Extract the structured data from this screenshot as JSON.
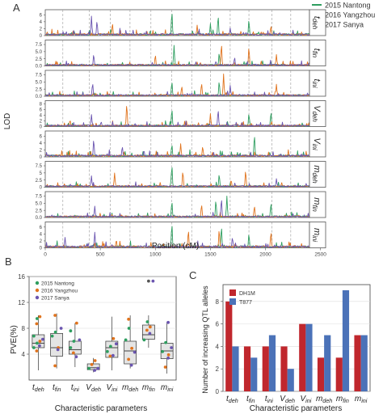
{
  "panels": {
    "a": "A",
    "b": "B",
    "c": "C"
  },
  "colors": {
    "nantong": "#2e9e5f",
    "yangzhou": "#e0731d",
    "sanya": "#6b55b0",
    "dh1m": "#c0272d",
    "t877": "#4b72b8"
  },
  "chart_data": [
    {
      "type": "line",
      "xlabel": "Position (cM)",
      "ylabel": "LOD",
      "xlim": [
        0,
        2400
      ],
      "xticks": [
        "0",
        "500",
        "1000",
        "1500",
        "2000",
        "2500"
      ],
      "legend": {
        "placement": "top-right",
        "entries": [
          "2015 Nantong",
          "2016 Yangzhou",
          "2017 Sanya"
        ]
      },
      "chromosome_boundaries_cM": [
        160,
        400,
        590,
        770,
        960,
        1150,
        1330,
        1500,
        1680,
        1850,
        2060,
        2230
      ],
      "tracks": [
        {
          "label": "tdeh",
          "yticks": [
            "0",
            "2",
            "4",
            "6"
          ],
          "ylim": [
            0,
            7
          ],
          "peaks": {
            "2015 Nantong": [
              [
                1150,
                6.8
              ],
              [
                1570,
                5.6
              ],
              [
                1850,
                4.5
              ],
              [
                1500,
                3.5
              ]
            ],
            "2016 Yangzhou": [
              [
                610,
                3.5
              ],
              [
                1380,
                3.0
              ],
              [
                2050,
                2.8
              ]
            ],
            "2017 Sanya": [
              [
                420,
                5.6
              ],
              [
                470,
                4.2
              ],
              [
                1680,
                2.2
              ]
            ]
          }
        },
        {
          "label": "tfin",
          "yticks": [
            "0.0",
            "2.5",
            "5.0",
            "7.5"
          ],
          "ylim": [
            0,
            8.5
          ],
          "peaks": {
            "2015 Nantong": [
              [
                1170,
                7.2
              ],
              [
                1580,
                4.5
              ]
            ],
            "2016 Yangzhou": [
              [
                1600,
                7.6
              ],
              [
                1850,
                6.5
              ],
              [
                1000,
                3.8
              ],
              [
                2100,
                4.0
              ]
            ],
            "2017 Sanya": [
              [
                440,
                4.0
              ],
              [
                1720,
                3.0
              ]
            ]
          }
        },
        {
          "label": "tini",
          "yticks": [
            "0.0",
            "2.5",
            "5.0",
            "7.5"
          ],
          "ylim": [
            0,
            8.5
          ],
          "peaks": {
            "2015 Nantong": [
              [
                1150,
                5.0
              ],
              [
                1580,
                5.2
              ]
            ],
            "2016 Yangzhou": [
              [
                1240,
                3.5
              ],
              [
                1420,
                4.5
              ],
              [
                1620,
                7.8
              ],
              [
                2100,
                4.2
              ]
            ],
            "2017 Sanya": [
              [
                430,
                4.5
              ],
              [
                1680,
                3.8
              ]
            ]
          }
        },
        {
          "label": "Vdeh",
          "yticks": [
            "0",
            "2",
            "4",
            "6",
            "8"
          ],
          "ylim": [
            0,
            8.5
          ],
          "peaks": {
            "2015 Nantong": [
              [
                1150,
                6.0
              ],
              [
                2050,
                5.0
              ],
              [
                1850,
                4.5
              ]
            ],
            "2016 Yangzhou": [
              [
                740,
                7.8
              ],
              [
                1500,
                4.5
              ]
            ],
            "2017 Sanya": [
              [
                420,
                4.2
              ],
              [
                1570,
                5.8
              ]
            ]
          }
        },
        {
          "label": "Vini",
          "yticks": [
            "0",
            "2",
            "4",
            "6"
          ],
          "ylim": [
            0,
            7
          ],
          "peaks": {
            "2015 Nantong": [
              [
                1900,
                6.2
              ],
              [
                1150,
                3.5
              ]
            ],
            "2016 Yangzhou": [
              [
                1230,
                3.8
              ],
              [
                1430,
                3.0
              ]
            ],
            "2017 Sanya": [
              [
                440,
                5.0
              ],
              [
                700,
                3.0
              ]
            ]
          }
        },
        {
          "label": "mdeh",
          "yticks": [
            "0",
            "2.5",
            "5",
            "7.5"
          ],
          "ylim": [
            0,
            8.5
          ],
          "peaks": {
            "2015 Nantong": [
              [
                1150,
                7.5
              ],
              [
                1580,
                4.5
              ]
            ],
            "2016 Yangzhou": [
              [
                630,
                5.0
              ],
              [
                1250,
                5.5
              ],
              [
                1820,
                5.8
              ]
            ],
            "2017 Sanya": [
              [
                420,
                4.0
              ],
              [
                2100,
                3.0
              ]
            ]
          }
        },
        {
          "label": "mfin",
          "yticks": [
            "0.0",
            "2.5",
            "5.0",
            "7.5"
          ],
          "ylim": [
            0,
            8.5
          ],
          "peaks": {
            "2015 Nantong": [
              [
                1150,
                5.5
              ],
              [
                1550,
                6.0
              ],
              [
                1650,
                7.5
              ],
              [
                2050,
                5.0
              ]
            ],
            "2016 Yangzhou": [
              [
                1420,
                4.5
              ],
              [
                1900,
                4.0
              ]
            ],
            "2017 Sanya": [
              [
                450,
                4.0
              ],
              [
                1600,
                6.5
              ]
            ]
          }
        },
        {
          "label": "mini",
          "yticks": [
            "0",
            "2",
            "4",
            "6"
          ],
          "ylim": [
            0,
            7
          ],
          "peaks": {
            "2015 Nantong": [
              [
                1150,
                6.8
              ],
              [
                1600,
                6.0
              ],
              [
                1850,
                4.0
              ]
            ],
            "2016 Yangzhou": [
              [
                1300,
                5.0
              ],
              [
                1580,
                5.2
              ],
              [
                2050,
                4.5
              ]
            ],
            "2017 Sanya": [
              [
                180,
                3.0
              ],
              [
                450,
                4.5
              ],
              [
                1700,
                3.0
              ]
            ]
          }
        }
      ]
    },
    {
      "type": "box",
      "ylabel": "PVE(%)",
      "xlabel": "Characteristic parameters",
      "ylim": [
        0,
        16
      ],
      "yticks": [
        "4",
        "8",
        "12",
        "16"
      ],
      "grid": true,
      "legend": {
        "placement": "top-left",
        "entries": [
          "2015 Nantong",
          "2016 Yangzhou",
          "2017 Sanya"
        ]
      },
      "categories": [
        "tdeh",
        "tfin",
        "tini",
        "Vdeh",
        "Vini",
        "mdeh",
        "mfin",
        "mini"
      ],
      "boxes": [
        {
          "min": 1.5,
          "q1": 5.0,
          "median": 5.7,
          "q3": 7.0,
          "max": 10.0
        },
        {
          "min": 1.8,
          "q1": 3.7,
          "median": 5.0,
          "q3": 7.2,
          "max": 10.3
        },
        {
          "min": 2.0,
          "q1": 4.0,
          "median": 4.7,
          "q3": 6.0,
          "max": 8.8
        },
        {
          "min": 1.2,
          "q1": 1.6,
          "median": 1.9,
          "q3": 2.5,
          "max": 3.4
        },
        {
          "min": 1.5,
          "q1": 3.5,
          "median": 5.0,
          "q3": 6.0,
          "max": 9.8
        },
        {
          "min": 1.8,
          "q1": 2.5,
          "median": 4.5,
          "q3": 6.0,
          "max": 10.0
        },
        {
          "min": 5.0,
          "q1": 6.3,
          "median": 7.0,
          "q3": 8.5,
          "max": 10.0
        },
        {
          "min": 1.0,
          "q1": 3.3,
          "median": 4.5,
          "q3": 5.7,
          "max": 9.0
        }
      ],
      "outliers": [
        {
          "category": "mfin",
          "value": 15.3
        }
      ],
      "points": {
        "2015 Nantong": [
          [
            5.0,
            5.7,
            6.8,
            9.5
          ],
          [
            6.8,
            7.4
          ],
          [
            5.0,
            6.0,
            7.6
          ],
          [
            1.8
          ],
          [
            4.4,
            5.2
          ],
          [
            6.2,
            8.0
          ],
          [
            6.2,
            9.0
          ],
          [
            4.4,
            5.8
          ]
        ],
        "2016 Yangzhou": [
          [
            4.5,
            6.0,
            8.7,
            9.8
          ],
          [
            2.2,
            5.0,
            10.0
          ],
          [
            4.2,
            8.8
          ],
          [
            2.4,
            3.0
          ],
          [
            3.7,
            6.4
          ],
          [
            3.2,
            4.9,
            9.4
          ],
          [
            7.7,
            8.2
          ],
          [
            2.0,
            3.9
          ]
        ],
        "2017 Sanya": [
          [
            5.3,
            6.3
          ],
          [
            4.7,
            8.0
          ],
          [
            3.6,
            6.2
          ],
          [
            1.5,
            1.8
          ],
          [
            3.8,
            5.6
          ],
          [
            2.3,
            4.3
          ],
          [
            7.2,
            15.3
          ],
          [
            3.4,
            5.0,
            8.9
          ]
        ]
      }
    },
    {
      "type": "bar",
      "ylabel": "Number of increasing QTL alleles",
      "xlabel": "Characteristic parameters",
      "ylim": [
        0,
        9.5
      ],
      "yticks": [
        "0",
        "2",
        "4",
        "6",
        "8"
      ],
      "grid": true,
      "legend": {
        "placement": "top-left",
        "entries": [
          "DH1M",
          "T877"
        ]
      },
      "categories": [
        "tdeh",
        "tfin",
        "tini",
        "Vdeh",
        "Vini",
        "mdeh",
        "mfin",
        "mini"
      ],
      "series": [
        {
          "name": "DH1M",
          "values": [
            8,
            4,
            4,
            4,
            6,
            3,
            3,
            5
          ]
        },
        {
          "name": "T877",
          "values": [
            4,
            3,
            5,
            2,
            6,
            5,
            9,
            5
          ]
        }
      ]
    }
  ]
}
